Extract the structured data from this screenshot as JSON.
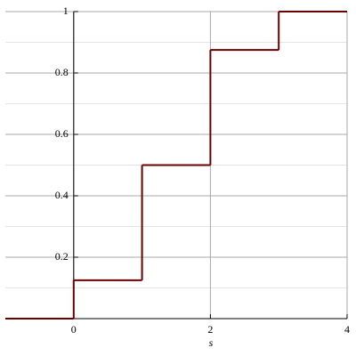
{
  "chart_data": {
    "type": "step",
    "xlabel": "s",
    "x": [
      -1,
      0,
      1,
      2,
      3
    ],
    "values": [
      0,
      0.125,
      0.5,
      0.875,
      1
    ],
    "color": "#6b0000",
    "xlim": [
      -1,
      4
    ],
    "ylim": [
      0,
      1
    ],
    "xticks": [
      0,
      2,
      4
    ],
    "yticks": [
      0.2,
      0.4,
      0.6,
      0.8,
      1
    ],
    "yminorticks": [
      0.1,
      0.3,
      0.5,
      0.7,
      0.9
    ],
    "grid": true
  }
}
